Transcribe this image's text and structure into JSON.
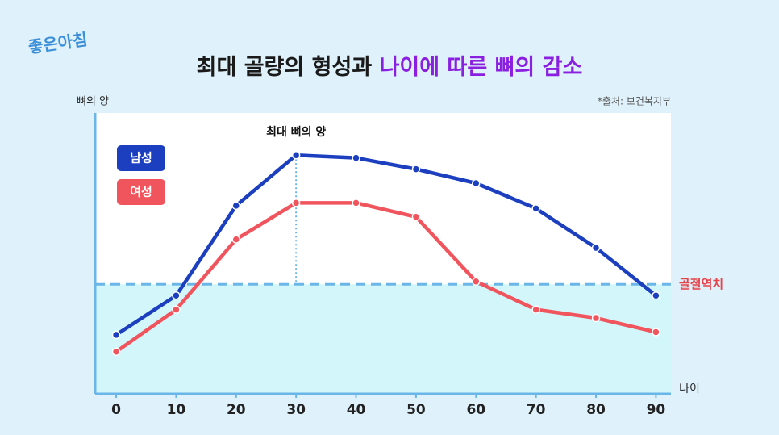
{
  "logo": "좋은아침",
  "source": "*출처: 보건복지부",
  "chart_data": {
    "type": "line",
    "title": "최대 골량의 형성과",
    "title_highlight": "나이에 따른 뼈의 감소",
    "y_label": "뼈의 양",
    "x_label": "나이",
    "x": [
      0,
      10,
      20,
      30,
      40,
      50,
      60,
      70,
      80,
      90
    ],
    "xlim": [
      -3.5,
      92.5
    ],
    "xticks": [
      0,
      10,
      20,
      30,
      40,
      50,
      60,
      70,
      80,
      90
    ],
    "ylim": [
      0,
      100
    ],
    "series": [
      {
        "name": "남성",
        "color": "#1b3fbf",
        "values": [
          21,
          35,
          67,
          85,
          84,
          80,
          75,
          66,
          52,
          35
        ]
      },
      {
        "name": "여성",
        "color": "#f0545c",
        "values": [
          15,
          30,
          55,
          68,
          68,
          63,
          40,
          30,
          27,
          22
        ]
      }
    ],
    "reference_line": {
      "label": "골절역치",
      "value": 39,
      "color": "#6ab6e8",
      "label_color": "#e8414a"
    },
    "annotation": {
      "text": "최대 뼈의 양",
      "x": 30
    }
  }
}
